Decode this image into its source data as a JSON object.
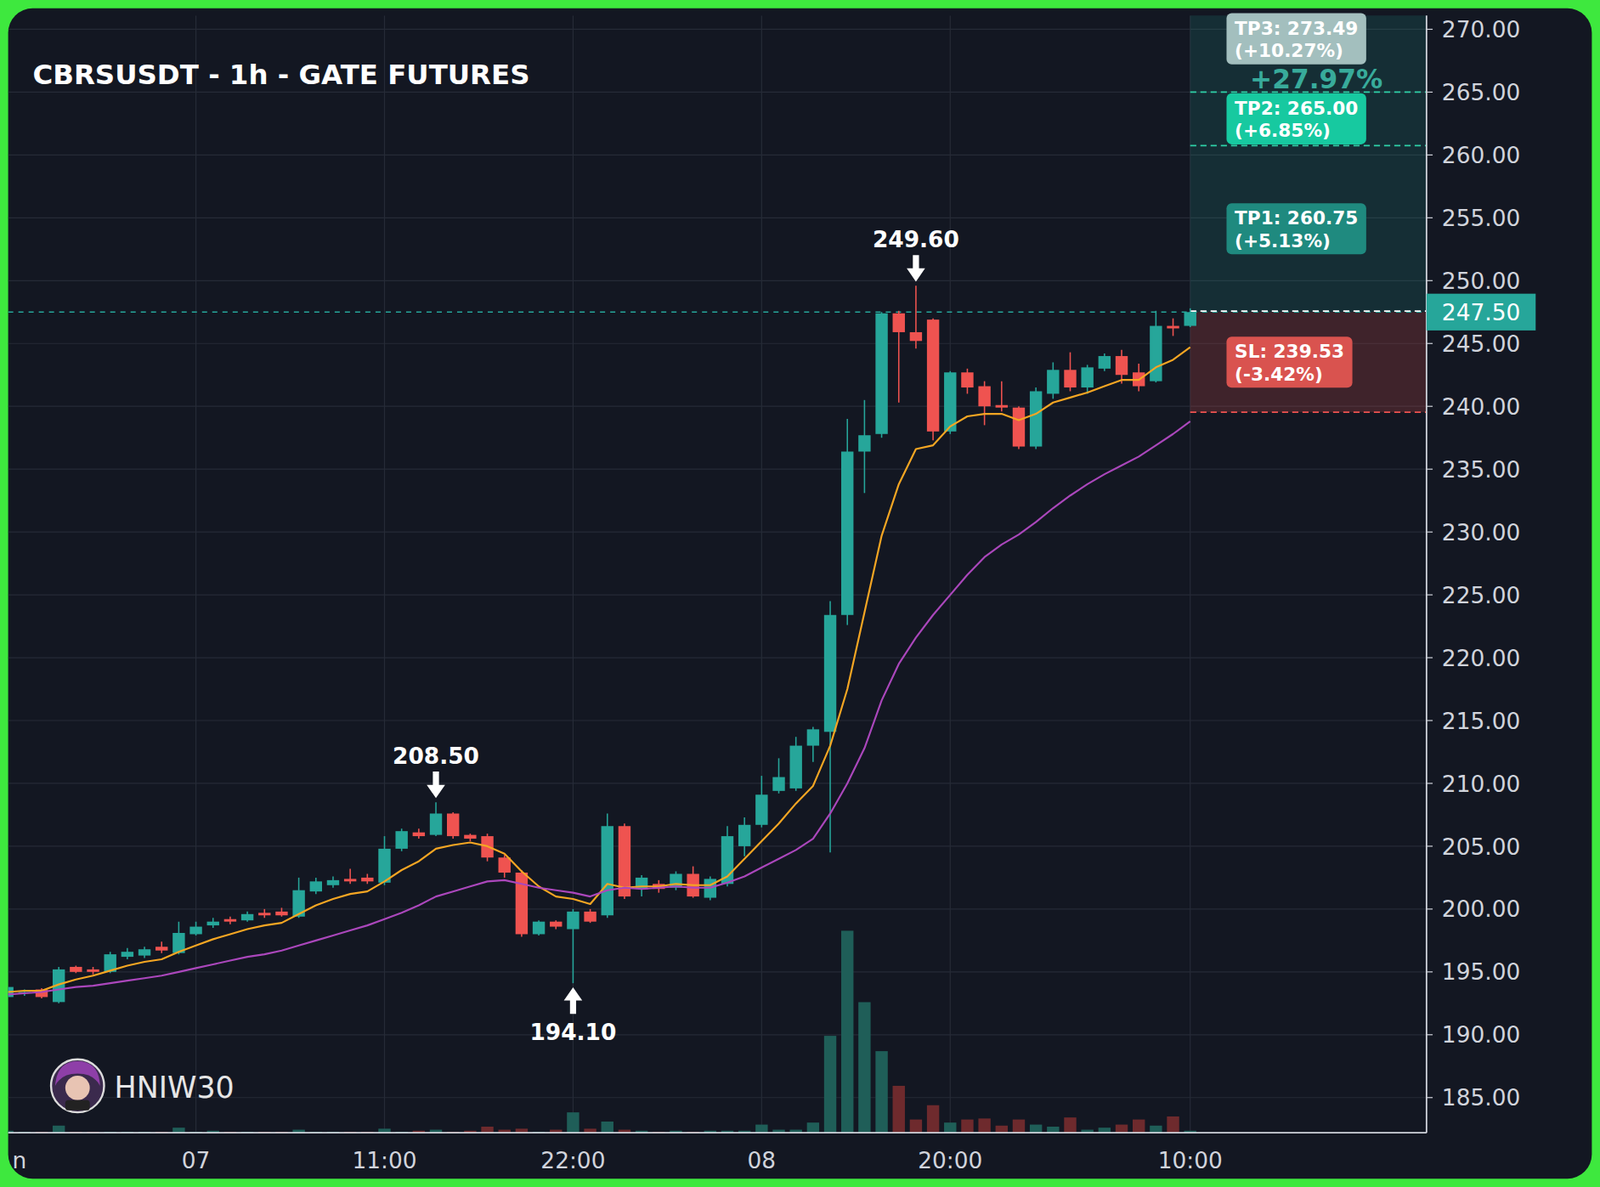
{
  "chart_data": {
    "type": "candlestick",
    "title": "CBRSUSDT - 1h - GATE FUTURES",
    "grid": true,
    "categories": [
      "n",
      null,
      null,
      null,
      null,
      null,
      null,
      null,
      null,
      null,
      null,
      "07",
      null,
      null,
      null,
      null,
      null,
      null,
      null,
      null,
      null,
      null,
      "11:00",
      null,
      null,
      null,
      null,
      null,
      null,
      null,
      null,
      null,
      null,
      "22:00",
      null,
      null,
      null,
      null,
      null,
      null,
      null,
      null,
      null,
      null,
      "08",
      null,
      null,
      null,
      null,
      null,
      null,
      null,
      null,
      null,
      null,
      "20:00",
      null,
      null,
      null,
      null,
      null,
      null,
      null,
      null,
      null,
      null,
      null,
      null,
      null,
      "10:00"
    ],
    "open": [
      193.0,
      193.3,
      193.6,
      192.6,
      195.4,
      195.2,
      195.0,
      196.2,
      196.3,
      197.0,
      196.5,
      198.0,
      198.7,
      199.2,
      199.1,
      199.7,
      199.8,
      199.4,
      201.4,
      201.9,
      202.4,
      202.5,
      202.1,
      204.8,
      206.1,
      205.9,
      207.6,
      205.9,
      205.8,
      204.1,
      202.9,
      198.0,
      199.0,
      198.4,
      199.8,
      199.5,
      206.6,
      201.6,
      202.0,
      201.7,
      202.8,
      200.9,
      202.0,
      205.0,
      206.7,
      209.4,
      209.6,
      213.0,
      214.1,
      223.4,
      236.4,
      237.8,
      247.4,
      245.9,
      246.9,
      238.0,
      242.7,
      241.6,
      240.1,
      239.9,
      236.8,
      241.0,
      242.9,
      241.5,
      243.0,
      244.0,
      242.7,
      242.0,
      246.4,
      246.4
    ],
    "high": [
      194.0,
      193.6,
      193.7,
      195.4,
      195.5,
      195.4,
      196.6,
      196.9,
      197.0,
      197.4,
      199.0,
      199.0,
      199.3,
      199.4,
      199.8,
      200.0,
      200.1,
      202.5,
      202.5,
      202.6,
      203.2,
      202.8,
      205.8,
      206.4,
      206.4,
      208.5,
      207.7,
      206.0,
      206.0,
      204.3,
      203.1,
      199.1,
      199.1,
      200.0,
      200.0,
      207.6,
      206.8,
      202.7,
      202.3,
      203.0,
      203.4,
      202.6,
      206.6,
      207.3,
      210.6,
      212.0,
      213.7,
      214.5,
      224.5,
      239.0,
      240.5,
      247.5,
      247.6,
      249.6,
      247.0,
      242.8,
      243.0,
      242.0,
      242.0,
      240.0,
      241.5,
      243.5,
      244.3,
      243.3,
      244.2,
      244.5,
      243.4,
      247.6,
      247.0,
      247.8
    ],
    "low": [
      192.8,
      193.1,
      192.9,
      192.5,
      194.9,
      194.8,
      194.9,
      196.0,
      196.1,
      196.5,
      196.4,
      197.9,
      198.5,
      198.8,
      199.0,
      199.3,
      199.4,
      199.3,
      201.2,
      201.7,
      202.0,
      202.0,
      201.9,
      204.6,
      205.6,
      205.8,
      205.6,
      205.4,
      203.8,
      202.5,
      197.8,
      197.9,
      198.4,
      194.1,
      198.9,
      199.3,
      200.8,
      201.0,
      201.3,
      201.5,
      200.9,
      200.7,
      201.8,
      204.2,
      206.5,
      209.2,
      209.4,
      211.7,
      204.5,
      222.6,
      233.1,
      237.5,
      240.3,
      244.6,
      237.3,
      237.8,
      241.0,
      238.5,
      239.6,
      236.6,
      236.6,
      240.6,
      241.2,
      241.0,
      242.8,
      241.8,
      241.2,
      241.9,
      245.6,
      246.3
    ],
    "close": [
      193.8,
      193.4,
      193.0,
      195.2,
      195.0,
      195.0,
      196.4,
      196.6,
      196.8,
      196.7,
      198.1,
      198.6,
      199.0,
      199.0,
      199.6,
      199.5,
      199.5,
      201.5,
      202.2,
      202.3,
      202.2,
      202.2,
      204.8,
      206.2,
      205.8,
      207.6,
      205.8,
      205.6,
      204.1,
      202.9,
      198.0,
      199.0,
      198.6,
      199.8,
      199.0,
      206.6,
      201.0,
      202.5,
      201.6,
      202.8,
      201.0,
      202.4,
      205.8,
      206.7,
      209.1,
      210.5,
      213.0,
      214.3,
      223.4,
      236.4,
      237.7,
      247.4,
      245.9,
      245.2,
      238.0,
      242.7,
      241.5,
      240.0,
      239.9,
      236.8,
      241.2,
      242.9,
      241.5,
      243.1,
      244.0,
      242.5,
      241.6,
      246.4,
      246.2,
      247.5
    ],
    "volume": [
      2,
      1,
      1,
      7,
      1,
      1,
      1,
      1,
      1,
      1,
      5,
      1,
      2,
      1,
      1,
      1,
      1,
      3,
      1,
      1,
      1,
      1,
      4,
      1,
      2,
      3,
      1,
      2,
      6,
      3,
      4,
      1,
      3,
      20,
      4,
      11,
      3,
      2,
      1,
      2,
      1,
      2,
      2,
      2,
      8,
      3,
      3,
      10,
      95,
      198,
      128,
      80,
      46,
      13,
      27,
      10,
      13,
      14,
      7,
      13,
      8,
      6,
      15,
      3,
      5,
      8,
      13,
      7,
      16,
      2
    ],
    "volume_lim": [
      0,
      400
    ],
    "series": [
      {
        "type": "line",
        "color": "#f5a623",
        "values": [
          193.4,
          193.5,
          193.5,
          194.0,
          194.4,
          194.7,
          195.1,
          195.5,
          195.8,
          196.0,
          196.6,
          197.1,
          197.6,
          198.0,
          198.4,
          198.7,
          198.9,
          199.6,
          200.3,
          200.8,
          201.2,
          201.4,
          202.2,
          203.1,
          203.8,
          204.8,
          205.1,
          205.3,
          205.0,
          204.4,
          203.0,
          201.8,
          201.0,
          200.8,
          200.4,
          202.0,
          201.7,
          201.8,
          201.8,
          202.0,
          201.9,
          201.9,
          202.6,
          204.0,
          205.4,
          206.8,
          208.4,
          209.8,
          213.0,
          217.5,
          223.6,
          229.7,
          233.8,
          236.6,
          236.9,
          238.4,
          239.2,
          239.4,
          239.4,
          238.9,
          239.4,
          240.3,
          240.7,
          241.1,
          241.6,
          242.1,
          242.1,
          243.1,
          243.7,
          244.7
        ]
      },
      {
        "type": "line",
        "color": "#ab47bc",
        "values": [
          193.2,
          193.3,
          193.4,
          193.6,
          193.8,
          193.9,
          194.1,
          194.3,
          194.5,
          194.7,
          195.0,
          195.3,
          195.6,
          195.9,
          196.2,
          196.4,
          196.7,
          197.1,
          197.5,
          197.9,
          198.3,
          198.7,
          199.2,
          199.7,
          200.3,
          201.0,
          201.4,
          201.8,
          202.2,
          202.3,
          202.0,
          201.7,
          201.5,
          201.3,
          201.0,
          201.5,
          201.7,
          201.6,
          201.7,
          201.8,
          201.7,
          201.7,
          202.1,
          202.6,
          203.3,
          204.0,
          204.7,
          205.6,
          207.6,
          210.0,
          212.8,
          216.6,
          219.5,
          221.6,
          223.4,
          225.0,
          226.6,
          228.0,
          229.0,
          229.8,
          230.8,
          231.9,
          232.9,
          233.8,
          234.6,
          235.3,
          236.0,
          236.9,
          237.8,
          238.8
        ]
      }
    ],
    "ylim": [
      182.2,
      271.1
    ],
    "yticks": [
      {
        "value": 185,
        "label": "185.00"
      },
      {
        "value": 190,
        "label": "190.00"
      },
      {
        "value": 195,
        "label": "195.00"
      },
      {
        "value": 200,
        "label": "200.00"
      },
      {
        "value": 205,
        "label": "205.00"
      },
      {
        "value": 210,
        "label": "210.00"
      },
      {
        "value": 215,
        "label": "215.00"
      },
      {
        "value": 220,
        "label": "220.00"
      },
      {
        "value": 225,
        "label": "225.00"
      },
      {
        "value": 230,
        "label": "230.00"
      },
      {
        "value": 235,
        "label": "235.00"
      },
      {
        "value": 240,
        "label": "240.00"
      },
      {
        "value": 245,
        "label": "245.00"
      },
      {
        "value": 250,
        "label": "250.00"
      },
      {
        "value": 255,
        "label": "255.00"
      },
      {
        "value": 260,
        "label": "260.00"
      },
      {
        "value": 265,
        "label": "265.00"
      },
      {
        "value": 270,
        "label": "270.00"
      }
    ],
    "annotations": [
      {
        "text": "208.50",
        "x": 25,
        "y": 208.5,
        "marker": "arrow_down"
      },
      {
        "text": "194.10",
        "x": 33,
        "y": 194.1,
        "marker": "arrow_up"
      },
      {
        "text": "249.60",
        "x": 53,
        "y": 249.6,
        "marker": "arrow_down"
      }
    ],
    "price_line": {
      "value": 247.5,
      "label": "247.50"
    },
    "targets": [
      {
        "text": "TP1: 260.75",
        "value": 260.75,
        "change": "(+5.13%)",
        "color": "#1f8a7f"
      },
      {
        "text": "TP2: 265.00",
        "value": 265.0,
        "change": "(+6.85%)",
        "color": "#17c9a0"
      },
      {
        "text": "TP3: 273.49",
        "value": 273.49,
        "change": "(+10.27%)",
        "color": "#a3bfbe"
      }
    ],
    "stop": {
      "text": "SL: 239.53",
      "value": 239.53,
      "change": "(-3.42%)",
      "color": "#d9534f"
    },
    "reward_label": "+27.97%",
    "watermark": "HNIW30"
  }
}
